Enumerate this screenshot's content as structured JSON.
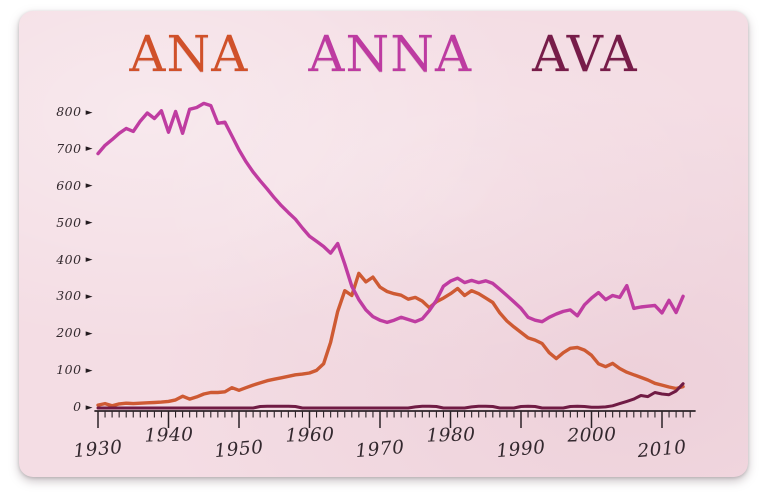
{
  "title": {
    "words": [
      {
        "label": "ANA",
        "color": "#d0512a"
      },
      {
        "label": "ANNA",
        "color": "#bd3ba1"
      },
      {
        "label": "AVA",
        "color": "#771c49"
      }
    ]
  },
  "axis": {
    "y_arrow": "►"
  },
  "colors": {
    "card_bg": "#f4dde4",
    "page_bg": "#ffffff",
    "axis_ink": "#2b2227",
    "tick_label_ink": "#33292e"
  },
  "chart_data": {
    "type": "line",
    "title": "ANA ANNA AVA",
    "xlabel": "",
    "ylabel": "",
    "grid": false,
    "legend_position": "top-colored-title",
    "xlim": [
      1930,
      2014
    ],
    "ylim": [
      0,
      830
    ],
    "yticks": [
      0,
      100,
      200,
      300,
      400,
      500,
      600,
      700,
      800
    ],
    "xticks": [
      1930,
      1940,
      1950,
      1960,
      1970,
      1980,
      1990,
      2000,
      2010
    ],
    "x": [
      1930,
      1931,
      1932,
      1933,
      1934,
      1935,
      1936,
      1937,
      1938,
      1939,
      1940,
      1941,
      1942,
      1943,
      1944,
      1945,
      1946,
      1947,
      1948,
      1949,
      1950,
      1951,
      1952,
      1953,
      1954,
      1955,
      1956,
      1957,
      1958,
      1959,
      1960,
      1961,
      1962,
      1963,
      1964,
      1965,
      1966,
      1967,
      1968,
      1969,
      1970,
      1971,
      1972,
      1973,
      1974,
      1975,
      1976,
      1977,
      1978,
      1979,
      1980,
      1981,
      1982,
      1983,
      1984,
      1985,
      1986,
      1987,
      1988,
      1989,
      1990,
      1991,
      1992,
      1993,
      1994,
      1995,
      1996,
      1997,
      1998,
      1999,
      2000,
      2001,
      2002,
      2003,
      2004,
      2005,
      2006,
      2007,
      2008,
      2009,
      2010,
      2011,
      2012,
      2013
    ],
    "series": [
      {
        "name": "ANA",
        "color": "#ce5a33",
        "stroke_width": 3.4,
        "values": [
          8,
          12,
          6,
          11,
          13,
          12,
          13,
          14,
          15,
          16,
          18,
          22,
          32,
          24,
          30,
          38,
          42,
          42,
          44,
          55,
          48,
          55,
          62,
          68,
          74,
          78,
          82,
          86,
          90,
          92,
          95,
          102,
          120,
          178,
          262,
          318,
          305,
          365,
          342,
          355,
          328,
          316,
          310,
          306,
          295,
          300,
          290,
          272,
          288,
          298,
          310,
          324,
          305,
          318,
          310,
          298,
          286,
          258,
          236,
          220,
          205,
          190,
          184,
          175,
          150,
          134,
          150,
          162,
          164,
          157,
          143,
          120,
          112,
          121,
          107,
          97,
          90,
          83,
          76,
          67,
          62,
          57,
          53,
          58
        ]
      },
      {
        "name": "ANNA",
        "color": "#bf3ca1",
        "stroke_width": 3.4,
        "values": [
          690,
          712,
          728,
          745,
          758,
          750,
          778,
          800,
          785,
          806,
          748,
          804,
          745,
          810,
          815,
          826,
          820,
          772,
          775,
          738,
          700,
          668,
          640,
          616,
          594,
          570,
          549,
          530,
          512,
          488,
          466,
          452,
          438,
          420,
          446,
          390,
          330,
          294,
          266,
          248,
          238,
          232,
          238,
          246,
          240,
          234,
          242,
          264,
          292,
          330,
          344,
          352,
          340,
          346,
          340,
          345,
          338,
          322,
          305,
          288,
          270,
          246,
          238,
          234,
          246,
          255,
          262,
          266,
          250,
          280,
          298,
          313,
          294,
          305,
          300,
          332,
          270,
          274,
          276,
          278,
          258,
          292,
          259,
          303
        ]
      },
      {
        "name": "AVA",
        "color": "#701b44",
        "stroke_width": 3.0,
        "values": [
          0,
          0,
          0,
          0,
          0,
          0,
          0,
          0,
          0,
          0,
          0,
          0,
          0,
          0,
          0,
          0,
          0,
          0,
          0,
          0,
          0,
          0,
          0,
          4,
          5,
          5,
          5,
          5,
          4,
          0,
          0,
          0,
          0,
          0,
          0,
          0,
          0,
          0,
          0,
          0,
          0,
          0,
          0,
          0,
          0,
          3,
          5,
          5,
          4,
          0,
          0,
          0,
          0,
          3,
          5,
          5,
          4,
          0,
          0,
          0,
          4,
          5,
          4,
          0,
          0,
          0,
          0,
          4,
          5,
          4,
          2,
          2,
          3,
          6,
          12,
          18,
          24,
          34,
          31,
          42,
          38,
          36,
          46,
          66
        ]
      }
    ]
  }
}
